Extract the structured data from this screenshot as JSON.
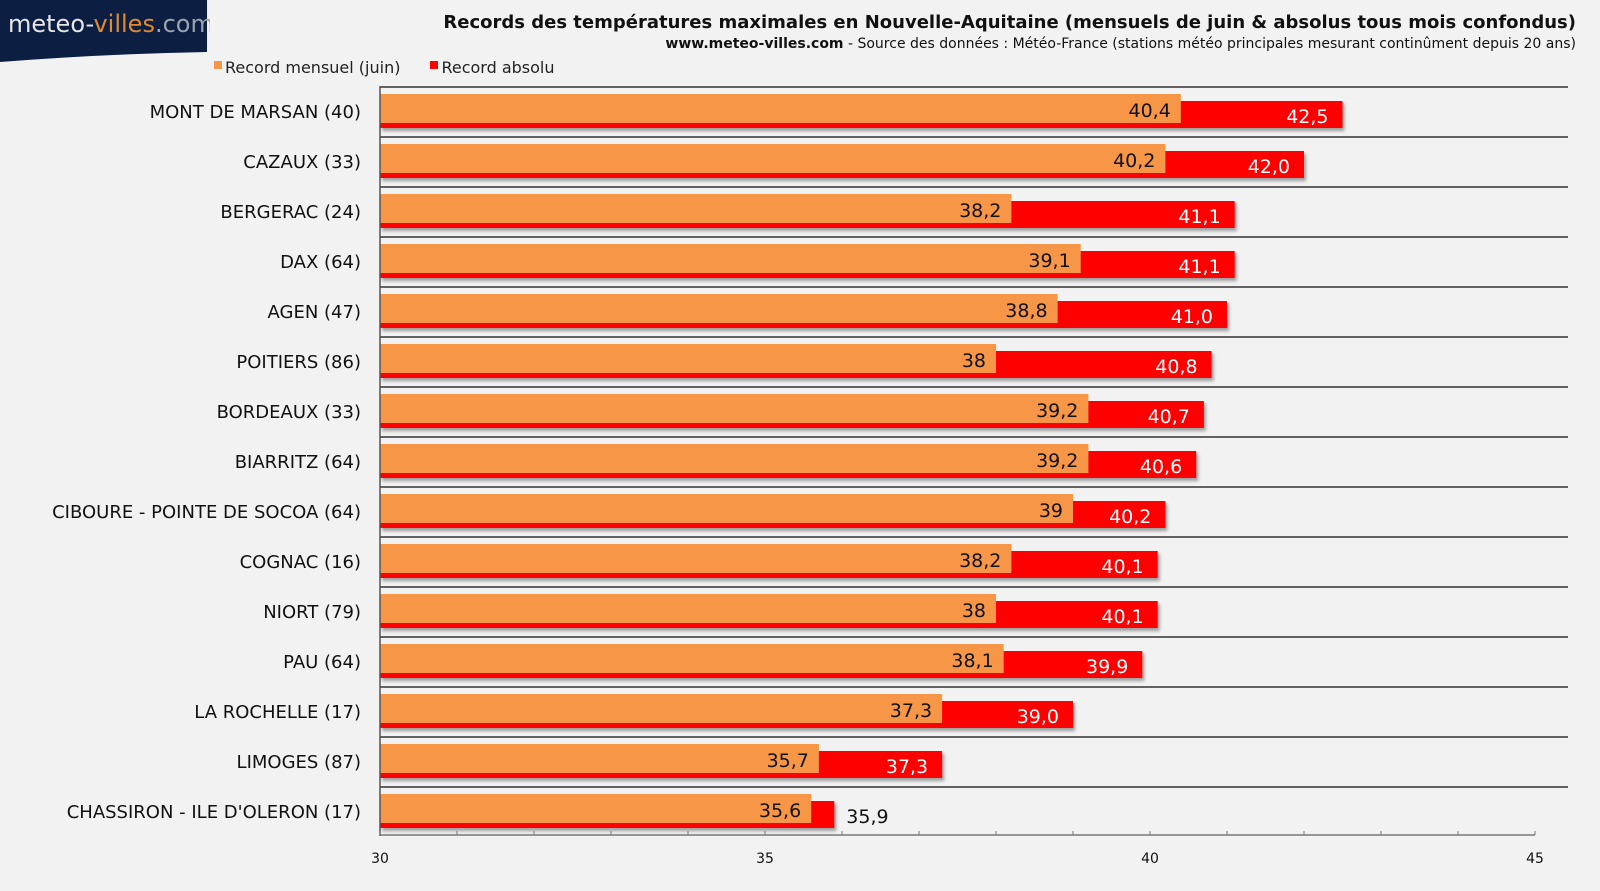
{
  "logo": {
    "part1": "meteo-",
    "part2": "villes",
    "part3": ".com"
  },
  "header": {
    "title": "Records des températures maximales en Nouvelle-Aquitaine (mensuels de juin & absolus tous mois confondus)",
    "subtitle_site": "www.meteo-villes.com",
    "subtitle_rest": " - Source des données : Météo-France (stations météo principales mesurant continûment depuis 20 ans)"
  },
  "colors": {
    "monthly": "#f79646",
    "absolute": "#ff0000",
    "logo_bg": "#0c1f42",
    "logo_accent": "#e08a2c"
  },
  "chart_data": {
    "type": "bar",
    "orientation": "horizontal",
    "title": "Records des températures maximales en Nouvelle-Aquitaine (mensuels de juin & absolus tous mois confondus)",
    "xlabel": "",
    "ylabel": "",
    "xlim": [
      30,
      45
    ],
    "xticks": [
      30,
      35,
      40,
      45
    ],
    "minor_tick_step": 1,
    "grid": "horizontal separators between categories",
    "legend_position": "top-left",
    "categories": [
      "MONT DE MARSAN (40)",
      "CAZAUX (33)",
      "BERGERAC (24)",
      "DAX (64)",
      "AGEN (47)",
      "POITIERS (86)",
      "BORDEAUX (33)",
      "BIARRITZ (64)",
      "CIBOURE - POINTE DE SOCOA (64)",
      "COGNAC (16)",
      "NIORT (79)",
      "PAU (64)",
      "LA ROCHELLE (17)",
      "LIMOGES (87)",
      "CHASSIRON - ILE D'OLERON (17)"
    ],
    "series": [
      {
        "name": "Record mensuel (juin)",
        "color": "#f79646",
        "values": [
          40.4,
          40.2,
          38.2,
          39.1,
          38.8,
          38,
          39.2,
          39.2,
          39,
          38.2,
          38,
          38.1,
          37.3,
          35.7,
          35.6
        ],
        "labels": [
          "40,4",
          "40,2",
          "38,2",
          "39,1",
          "38,8",
          "38",
          "39,2",
          "39,2",
          "39",
          "38,2",
          "38",
          "38,1",
          "37,3",
          "35,7",
          "35,6"
        ]
      },
      {
        "name": "Record absolu",
        "color": "#ff0000",
        "values": [
          42.5,
          42.0,
          41.1,
          41.1,
          41.0,
          40.8,
          40.7,
          40.6,
          40.2,
          40.1,
          40.1,
          39.9,
          39.0,
          37.3,
          35.9
        ],
        "labels": [
          "42,5",
          "42,0",
          "41,1",
          "41,1",
          "41,0",
          "40,8",
          "40,7",
          "40,6",
          "40,2",
          "40,1",
          "40,1",
          "39,9",
          "39,0",
          "37,3",
          "35,9"
        ]
      }
    ]
  }
}
